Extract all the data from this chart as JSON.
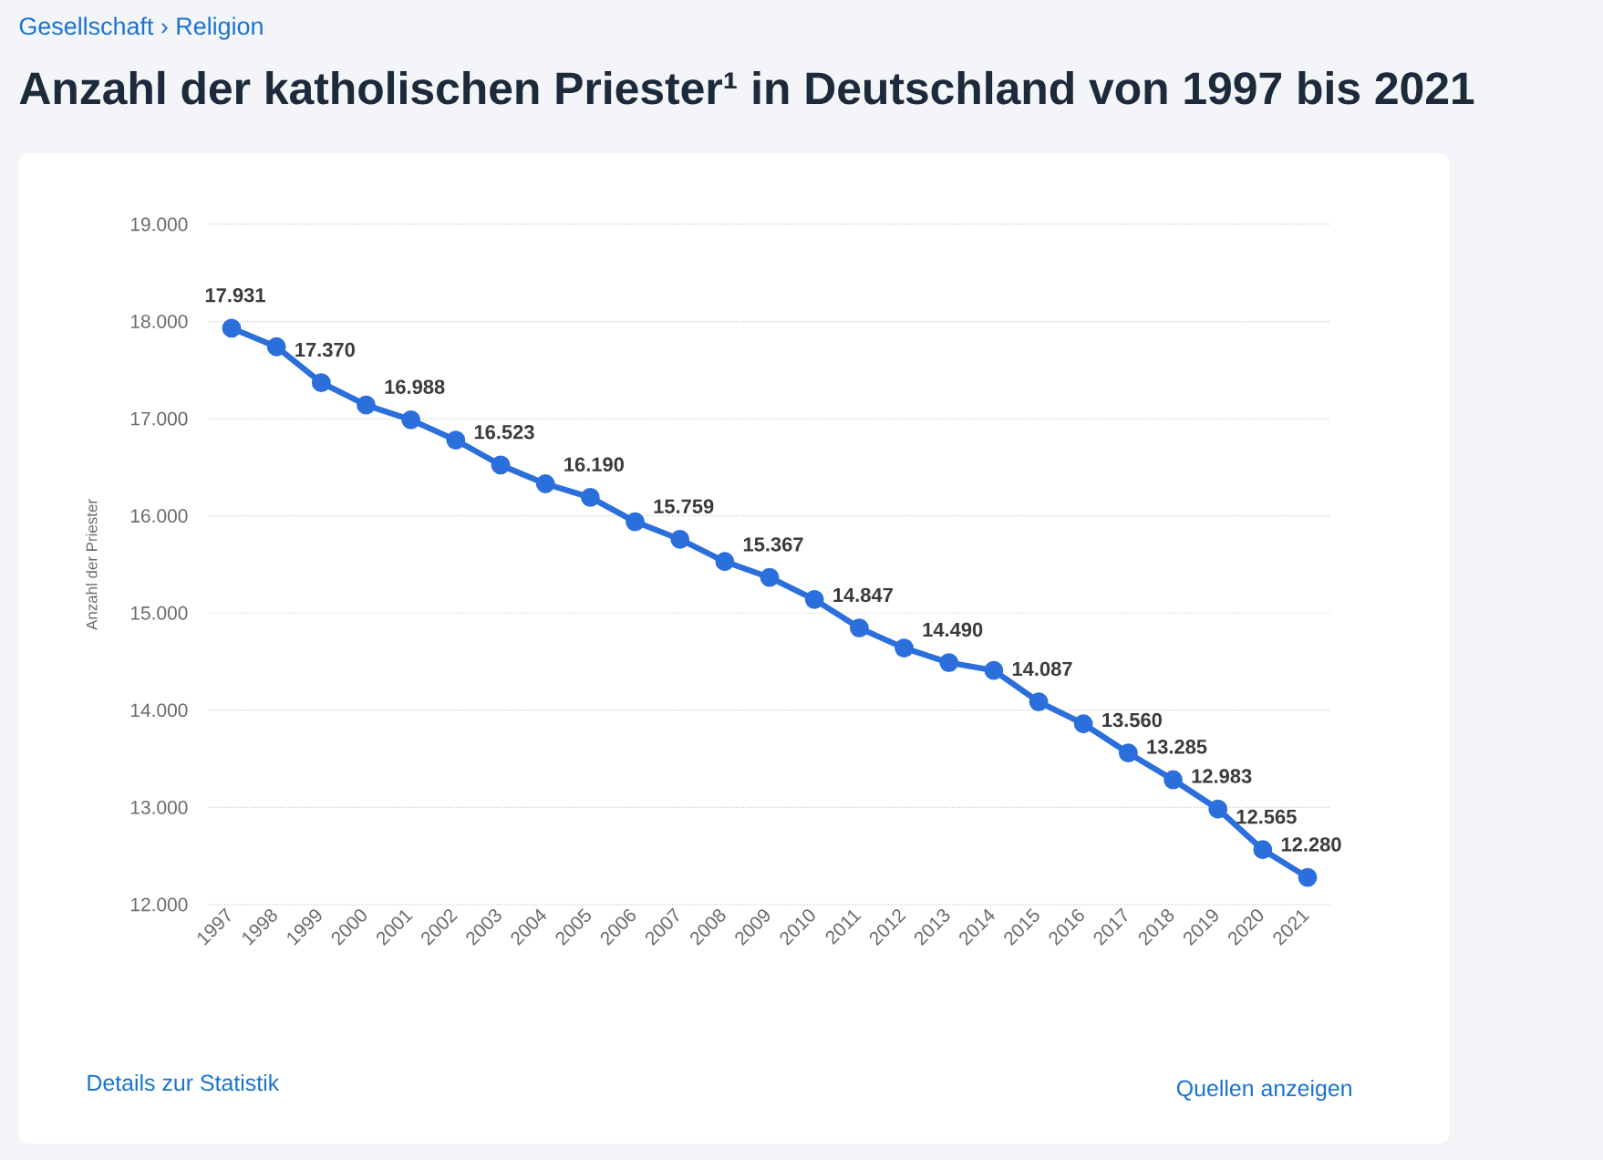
{
  "chart_data": {
    "type": "line",
    "title": "Anzahl der katholischen Priester¹ in Deutschland von 1997 bis 2021",
    "ylabel": "Anzahl der Priester",
    "annotations": [
      "Gesellschaft › Religion",
      "Details zur Statistik",
      "Quellen anzeigen"
    ],
    "categories": [
      "1997",
      "1998",
      "1999",
      "2000",
      "2001",
      "2002",
      "2003",
      "2004",
      "2005",
      "2006",
      "2007",
      "2008",
      "2009",
      "2010",
      "2011",
      "2012",
      "2013",
      "2014",
      "2015",
      "2016",
      "2017",
      "2018",
      "2019",
      "2020",
      "2021"
    ],
    "values": [
      17931,
      17740,
      17370,
      17140,
      16988,
      16780,
      16523,
      16330,
      16190,
      15940,
      15759,
      15530,
      15367,
      15140,
      14847,
      14640,
      14490,
      14410,
      14087,
      13860,
      13560,
      13285,
      12983,
      12565,
      12280
    ],
    "value_labels": [
      "17.931",
      null,
      "17.370",
      null,
      "16.988",
      null,
      "16.523",
      null,
      "16.190",
      null,
      "15.759",
      null,
      "15.367",
      null,
      "14.847",
      null,
      "14.490",
      null,
      "14.087",
      null,
      "13.560",
      "13.285",
      "12.983",
      "12.565",
      "12.280"
    ],
    "color": "#2a6fdb",
    "ylim": [
      12000,
      19000
    ],
    "yticks": [
      {
        "value": 12000,
        "label": "12.000"
      },
      {
        "value": 13000,
        "label": "13.000"
      },
      {
        "value": 14000,
        "label": "14.000"
      },
      {
        "value": 15000,
        "label": "15.000"
      },
      {
        "value": 16000,
        "label": "16.000"
      },
      {
        "value": 17000,
        "label": "17.000"
      },
      {
        "value": 18000,
        "label": "18.000"
      },
      {
        "value": 19000,
        "label": "19.000"
      }
    ],
    "grid": "y",
    "marker": "circle",
    "line_style": "solid"
  }
}
